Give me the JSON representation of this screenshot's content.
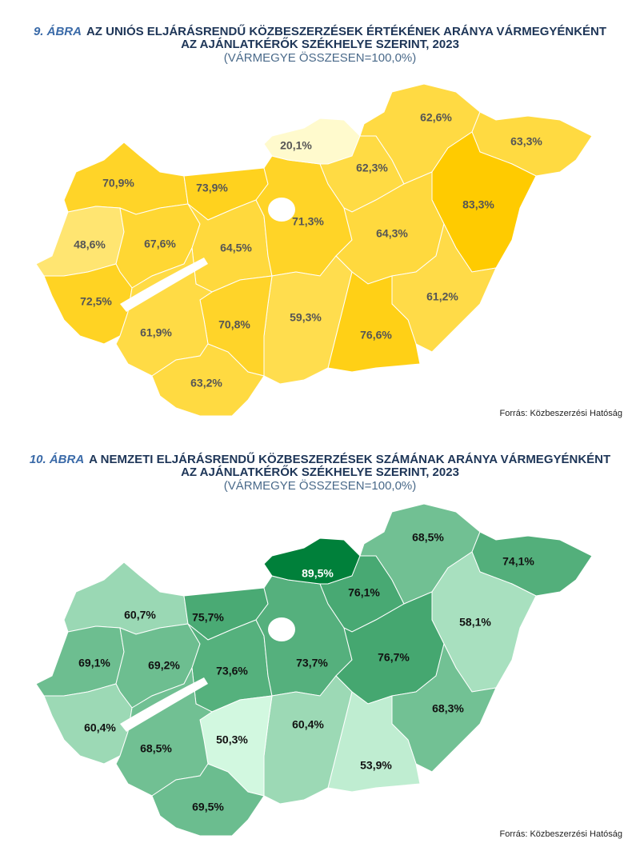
{
  "maps": [
    {
      "figure_label": "9. ÁBRA",
      "title": "AZ UNIÓS ELJÁRÁSRENDŰ KÖZBESZERZÉSEK ÉRTÉKÉNEK ARÁNYA VÁRMEGYÉNKÉNT",
      "title_line2": "AZ AJÁNLATKÉRŐK SZÉKHELYE SZERINT, 2023",
      "subtitle": "(VÁRMEGYE ÖSSZESEN=100,0%)",
      "source": "Forrás: Közbeszerzési Hatóság",
      "palette": "yellow",
      "regions": [
        {
          "value": 70.9,
          "label": "70,9%"
        },
        {
          "value": 73.9,
          "label": "73,9%"
        },
        {
          "value": 48.6,
          "label": "48,6%"
        },
        {
          "value": 67.6,
          "label": "67,6%"
        },
        {
          "value": 64.5,
          "label": "64,5%"
        },
        {
          "value": 71.3,
          "label": "71,3%"
        },
        {
          "value": 20.1,
          "label": "20,1%"
        },
        {
          "value": 62.3,
          "label": "62,3%"
        },
        {
          "value": 62.6,
          "label": "62,6%"
        },
        {
          "value": 63.3,
          "label": "63,3%"
        },
        {
          "value": 83.3,
          "label": "83,3%"
        },
        {
          "value": 64.3,
          "label": "64,3%"
        },
        {
          "value": 61.2,
          "label": "61,2%"
        },
        {
          "value": 76.6,
          "label": "76,6%"
        },
        {
          "value": 59.3,
          "label": "59,3%"
        },
        {
          "value": 70.8,
          "label": "70,8%"
        },
        {
          "value": 72.5,
          "label": "72,5%"
        },
        {
          "value": 61.9,
          "label": "61,9%"
        },
        {
          "value": 63.2,
          "label": "63,2%"
        }
      ]
    },
    {
      "figure_label": "10. ÁBRA",
      "title": "A NEMZETI ELJÁRÁSRENDŰ KÖZBESZERZÉSEK SZÁMÁNAK ARÁNYA VÁRMEGYÉNKÉNT",
      "title_line2": "AZ AJÁNLATKÉRŐK SZÉKHELYE SZERINT, 2023",
      "subtitle": "(VÁRMEGYE ÖSSZESEN=100,0%)",
      "source": "Forrás: Közbeszerzési Hatóság",
      "palette": "green",
      "regions": [
        {
          "value": 60.7,
          "label": "60,7%"
        },
        {
          "value": 75.7,
          "label": "75,7%"
        },
        {
          "value": 69.1,
          "label": "69,1%"
        },
        {
          "value": 69.2,
          "label": "69,2%"
        },
        {
          "value": 73.6,
          "label": "73,6%"
        },
        {
          "value": 73.7,
          "label": "73,7%"
        },
        {
          "value": 89.5,
          "label": "89,5%"
        },
        {
          "value": 76.1,
          "label": "76,1%"
        },
        {
          "value": 68.5,
          "label": "68,5%"
        },
        {
          "value": 74.1,
          "label": "74,1%"
        },
        {
          "value": 58.1,
          "label": "58,1%"
        },
        {
          "value": 76.7,
          "label": "76,7%"
        },
        {
          "value": 68.3,
          "label": "68,3%"
        },
        {
          "value": 53.9,
          "label": "53,9%"
        },
        {
          "value": 60.4,
          "label": "60,4%"
        },
        {
          "value": 50.3,
          "label": "50,3%"
        },
        {
          "value": 60.4,
          "label": "60,4%"
        },
        {
          "value": 68.5,
          "label": "68,5%"
        },
        {
          "value": 69.5,
          "label": "69,5%"
        }
      ]
    }
  ]
}
